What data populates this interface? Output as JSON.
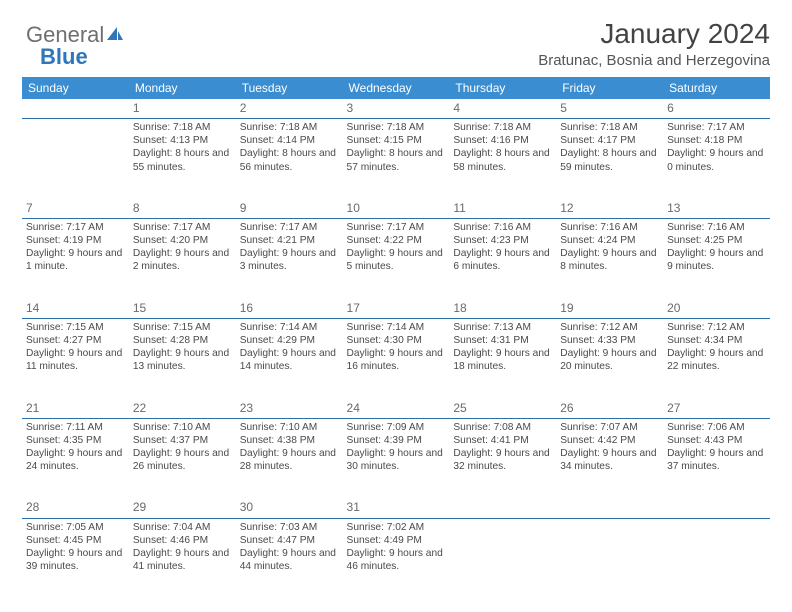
{
  "brand": {
    "part1": "General",
    "part2": "Blue"
  },
  "header": {
    "month_title": "January 2024",
    "location": "Bratunac, Bosnia and Herzegovina"
  },
  "colors": {
    "header_bg": "#3a8dd0",
    "header_text": "#ffffff",
    "rule": "#2f6fa8",
    "body_text": "#4a4a4a",
    "daynum": "#6a6a6a",
    "brand_gray": "#6f6f6f",
    "brand_blue": "#2f77bb",
    "page_bg": "#ffffff"
  },
  "calendar": {
    "day_labels": [
      "Sunday",
      "Monday",
      "Tuesday",
      "Wednesday",
      "Thursday",
      "Friday",
      "Saturday"
    ],
    "weeks": [
      [
        null,
        {
          "n": "1",
          "sr": "Sunrise: 7:18 AM",
          "ss": "Sunset: 4:13 PM",
          "dl": "Daylight: 8 hours and 55 minutes."
        },
        {
          "n": "2",
          "sr": "Sunrise: 7:18 AM",
          "ss": "Sunset: 4:14 PM",
          "dl": "Daylight: 8 hours and 56 minutes."
        },
        {
          "n": "3",
          "sr": "Sunrise: 7:18 AM",
          "ss": "Sunset: 4:15 PM",
          "dl": "Daylight: 8 hours and 57 minutes."
        },
        {
          "n": "4",
          "sr": "Sunrise: 7:18 AM",
          "ss": "Sunset: 4:16 PM",
          "dl": "Daylight: 8 hours and 58 minutes."
        },
        {
          "n": "5",
          "sr": "Sunrise: 7:18 AM",
          "ss": "Sunset: 4:17 PM",
          "dl": "Daylight: 8 hours and 59 minutes."
        },
        {
          "n": "6",
          "sr": "Sunrise: 7:17 AM",
          "ss": "Sunset: 4:18 PM",
          "dl": "Daylight: 9 hours and 0 minutes."
        }
      ],
      [
        {
          "n": "7",
          "sr": "Sunrise: 7:17 AM",
          "ss": "Sunset: 4:19 PM",
          "dl": "Daylight: 9 hours and 1 minute."
        },
        {
          "n": "8",
          "sr": "Sunrise: 7:17 AM",
          "ss": "Sunset: 4:20 PM",
          "dl": "Daylight: 9 hours and 2 minutes."
        },
        {
          "n": "9",
          "sr": "Sunrise: 7:17 AM",
          "ss": "Sunset: 4:21 PM",
          "dl": "Daylight: 9 hours and 3 minutes."
        },
        {
          "n": "10",
          "sr": "Sunrise: 7:17 AM",
          "ss": "Sunset: 4:22 PM",
          "dl": "Daylight: 9 hours and 5 minutes."
        },
        {
          "n": "11",
          "sr": "Sunrise: 7:16 AM",
          "ss": "Sunset: 4:23 PM",
          "dl": "Daylight: 9 hours and 6 minutes."
        },
        {
          "n": "12",
          "sr": "Sunrise: 7:16 AM",
          "ss": "Sunset: 4:24 PM",
          "dl": "Daylight: 9 hours and 8 minutes."
        },
        {
          "n": "13",
          "sr": "Sunrise: 7:16 AM",
          "ss": "Sunset: 4:25 PM",
          "dl": "Daylight: 9 hours and 9 minutes."
        }
      ],
      [
        {
          "n": "14",
          "sr": "Sunrise: 7:15 AM",
          "ss": "Sunset: 4:27 PM",
          "dl": "Daylight: 9 hours and 11 minutes."
        },
        {
          "n": "15",
          "sr": "Sunrise: 7:15 AM",
          "ss": "Sunset: 4:28 PM",
          "dl": "Daylight: 9 hours and 13 minutes."
        },
        {
          "n": "16",
          "sr": "Sunrise: 7:14 AM",
          "ss": "Sunset: 4:29 PM",
          "dl": "Daylight: 9 hours and 14 minutes."
        },
        {
          "n": "17",
          "sr": "Sunrise: 7:14 AM",
          "ss": "Sunset: 4:30 PM",
          "dl": "Daylight: 9 hours and 16 minutes."
        },
        {
          "n": "18",
          "sr": "Sunrise: 7:13 AM",
          "ss": "Sunset: 4:31 PM",
          "dl": "Daylight: 9 hours and 18 minutes."
        },
        {
          "n": "19",
          "sr": "Sunrise: 7:12 AM",
          "ss": "Sunset: 4:33 PM",
          "dl": "Daylight: 9 hours and 20 minutes."
        },
        {
          "n": "20",
          "sr": "Sunrise: 7:12 AM",
          "ss": "Sunset: 4:34 PM",
          "dl": "Daylight: 9 hours and 22 minutes."
        }
      ],
      [
        {
          "n": "21",
          "sr": "Sunrise: 7:11 AM",
          "ss": "Sunset: 4:35 PM",
          "dl": "Daylight: 9 hours and 24 minutes."
        },
        {
          "n": "22",
          "sr": "Sunrise: 7:10 AM",
          "ss": "Sunset: 4:37 PM",
          "dl": "Daylight: 9 hours and 26 minutes."
        },
        {
          "n": "23",
          "sr": "Sunrise: 7:10 AM",
          "ss": "Sunset: 4:38 PM",
          "dl": "Daylight: 9 hours and 28 minutes."
        },
        {
          "n": "24",
          "sr": "Sunrise: 7:09 AM",
          "ss": "Sunset: 4:39 PM",
          "dl": "Daylight: 9 hours and 30 minutes."
        },
        {
          "n": "25",
          "sr": "Sunrise: 7:08 AM",
          "ss": "Sunset: 4:41 PM",
          "dl": "Daylight: 9 hours and 32 minutes."
        },
        {
          "n": "26",
          "sr": "Sunrise: 7:07 AM",
          "ss": "Sunset: 4:42 PM",
          "dl": "Daylight: 9 hours and 34 minutes."
        },
        {
          "n": "27",
          "sr": "Sunrise: 7:06 AM",
          "ss": "Sunset: 4:43 PM",
          "dl": "Daylight: 9 hours and 37 minutes."
        }
      ],
      [
        {
          "n": "28",
          "sr": "Sunrise: 7:05 AM",
          "ss": "Sunset: 4:45 PM",
          "dl": "Daylight: 9 hours and 39 minutes."
        },
        {
          "n": "29",
          "sr": "Sunrise: 7:04 AM",
          "ss": "Sunset: 4:46 PM",
          "dl": "Daylight: 9 hours and 41 minutes."
        },
        {
          "n": "30",
          "sr": "Sunrise: 7:03 AM",
          "ss": "Sunset: 4:47 PM",
          "dl": "Daylight: 9 hours and 44 minutes."
        },
        {
          "n": "31",
          "sr": "Sunrise: 7:02 AM",
          "ss": "Sunset: 4:49 PM",
          "dl": "Daylight: 9 hours and 46 minutes."
        },
        null,
        null,
        null
      ]
    ]
  }
}
